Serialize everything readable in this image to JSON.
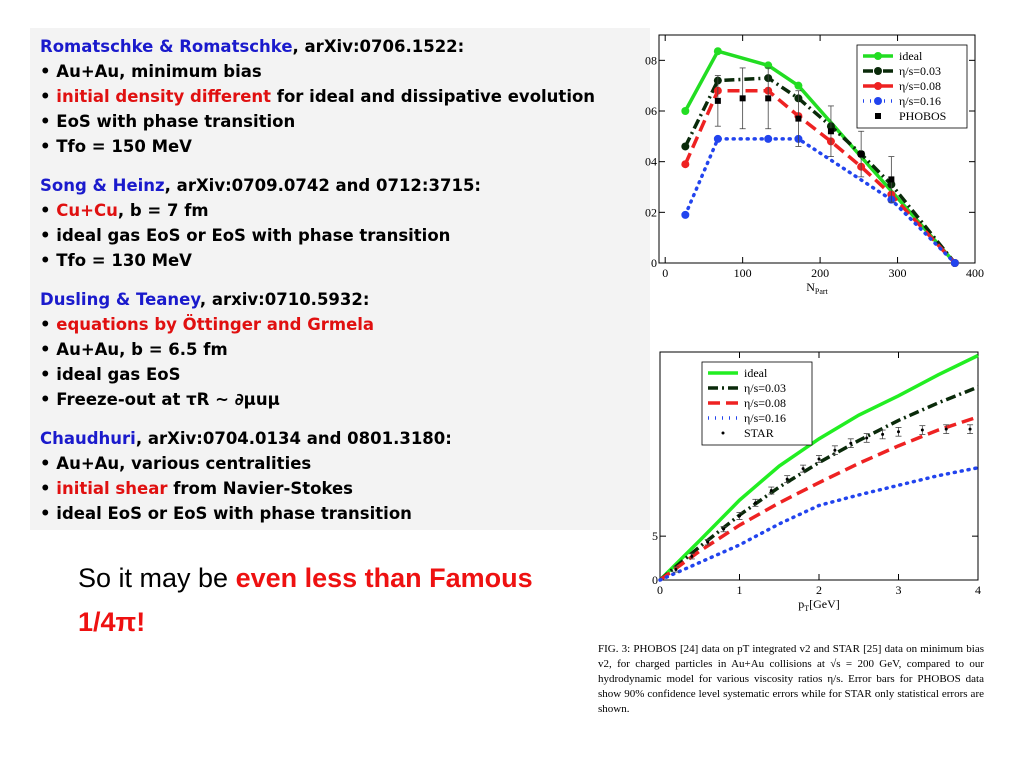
{
  "blocks": [
    {
      "heading": [
        {
          "text": "Romatschke & Romatschke",
          "color": "#1a1acc"
        },
        {
          "text": ", arXiv:0706.1522:",
          "color": "#000000"
        }
      ],
      "items": [
        [
          {
            "text": "Au+Au, minimum bias",
            "color": "#000000"
          }
        ],
        [
          {
            "text": "initial density different",
            "color": "#e01010"
          },
          {
            "text": " for ideal and dissipative evolution",
            "color": "#000000"
          }
        ],
        [
          {
            "text": "EoS with phase transition",
            "color": "#000000"
          }
        ],
        [
          {
            "text": "Tfo = 150 MeV",
            "color": "#000000"
          }
        ]
      ]
    },
    {
      "heading": [
        {
          "text": "Song & Heinz",
          "color": "#1a1acc"
        },
        {
          "text": ", arXiv:0709.0742 and 0712:3715:",
          "color": "#000000"
        }
      ],
      "items": [
        [
          {
            "text": "Cu+Cu",
            "color": "#e01010"
          },
          {
            "text": ", b = 7 fm",
            "color": "#000000"
          }
        ],
        [
          {
            "text": "ideal gas EoS or EoS with phase transition",
            "color": "#000000"
          }
        ],
        [
          {
            "text": "Tfo = 130 MeV",
            "color": "#000000"
          }
        ]
      ]
    },
    {
      "heading": [
        {
          "text": "Dusling & Teaney",
          "color": "#1a1acc"
        },
        {
          "text": ", arxiv:0710.5932:",
          "color": "#000000"
        }
      ],
      "items": [
        [
          {
            "text": "equations by Öttinger and Grmela",
            "color": "#e01010"
          }
        ],
        [
          {
            "text": "Au+Au, b = 6.5 fm",
            "color": "#000000"
          }
        ],
        [
          {
            "text": "ideal gas EoS",
            "color": "#000000"
          }
        ],
        [
          {
            "text": "Freeze-out at τR ~ ∂μuμ",
            "color": "#000000"
          }
        ]
      ]
    },
    {
      "heading": [
        {
          "text": "Chaudhuri",
          "color": "#1a1acc"
        },
        {
          "text": ", arXiv:0704.0134 and 0801.3180:",
          "color": "#000000"
        }
      ],
      "items": [
        [
          {
            "text": "Au+Au, various centralities",
            "color": "#000000"
          }
        ],
        [
          {
            "text": "initial shear",
            "color": "#e01010"
          },
          {
            "text": " from Navier-Stokes",
            "color": "#000000"
          }
        ],
        [
          {
            "text": "ideal EoS or EoS with phase transition",
            "color": "#000000"
          }
        ]
      ]
    }
  ],
  "message": {
    "plain": "So it may be ",
    "highlight": "even less than Famous 1/4π!"
  },
  "caption": "FIG. 3: PHOBOS [24] data on pT integrated v2 and STAR [25] data on minimum bias v2, for charged particles in Au+Au collisions at √s = 200 GeV, compared to our hydrodynamic model for various viscosity ratios η/s. Error bars for PHOBOS data show 90% confidence level systematic errors while for STAR only statistical errors are shown.",
  "chart_data": [
    {
      "type": "line",
      "xlabel": "N",
      "xlabel_sub": "Part",
      "xlim": [
        -8,
        400
      ],
      "xticks": [
        0,
        100,
        200,
        300,
        400
      ],
      "ylim": [
        0,
        0.09
      ],
      "yticks": [
        {
          "value": 0,
          "label": "0"
        },
        {
          "value": 0.02,
          "label": "02"
        },
        {
          "value": 0.04,
          "label": "04"
        },
        {
          "value": 0.06,
          "label": "06"
        },
        {
          "value": 0.08,
          "label": "08"
        }
      ],
      "legend": "upper right",
      "series": [
        {
          "name": "ideal",
          "color": "#22dd22",
          "style": "solid",
          "marker": "circle",
          "x": [
            26,
            68,
            133,
            172,
            374
          ],
          "values": [
            0.06,
            0.0836,
            0.078,
            0.07,
            0
          ]
        },
        {
          "name": "η/s=0.03",
          "color": "#0a2a0a",
          "style": "dashdot",
          "marker": "circle",
          "x": [
            26,
            68,
            133,
            172,
            214,
            253,
            292,
            374
          ],
          "values": [
            0.046,
            0.072,
            0.073,
            0.065,
            0.054,
            0.043,
            0.031,
            0
          ]
        },
        {
          "name": "η/s=0.08",
          "color": "#ee2222",
          "style": "dashed",
          "marker": "circle",
          "x": [
            26,
            68,
            133,
            172,
            214,
            253,
            292,
            374
          ],
          "values": [
            0.039,
            0.068,
            0.068,
            0.058,
            0.048,
            0.038,
            0.027,
            0
          ]
        },
        {
          "name": "η/s=0.16",
          "color": "#2244ee",
          "style": "dotted",
          "marker": "circle",
          "x": [
            26,
            68,
            133,
            172,
            292,
            374
          ],
          "values": [
            0.019,
            0.049,
            0.049,
            0.049,
            0.025,
            0
          ]
        },
        {
          "name": "PHOBOS",
          "color": "#000000",
          "style": "none",
          "marker": "square",
          "x": [
            68,
            100,
            133,
            172,
            214,
            253,
            292
          ],
          "values": [
            0.064,
            0.065,
            0.065,
            0.057,
            0.052,
            0.043,
            0.033
          ],
          "errors": [
            0.01,
            0.012,
            0.012,
            0.011,
            0.01,
            0.009,
            0.009
          ]
        }
      ]
    },
    {
      "type": "line",
      "xlabel": "p",
      "xlabel_sub": "T",
      "xlabel_rest": "[GeV]",
      "xlim": [
        0,
        4
      ],
      "xticks": [
        0,
        1,
        2,
        3,
        4
      ],
      "ylim": [
        0,
        0.26
      ],
      "yticks": [
        0,
        {
          "value": 0.05,
          "label": "5"
        }
      ],
      "legend": "upper left",
      "series": [
        {
          "name": "ideal",
          "color": "#22ee22",
          "style": "solid",
          "marker": "none",
          "x": [
            0,
            0.5,
            1,
            1.5,
            2,
            2.5,
            3,
            3.5,
            4
          ],
          "values": [
            0,
            0.045,
            0.091,
            0.13,
            0.161,
            0.188,
            0.21,
            0.234,
            0.256
          ]
        },
        {
          "name": "η/s=0.03",
          "color": "#0a2a0a",
          "style": "dashdot",
          "marker": "none",
          "x": [
            0,
            0.5,
            1,
            1.5,
            2,
            2.5,
            3,
            3.5,
            4
          ],
          "values": [
            0,
            0.038,
            0.074,
            0.106,
            0.134,
            0.159,
            0.182,
            0.202,
            0.22
          ]
        },
        {
          "name": "η/s=0.08",
          "color": "#ee2222",
          "style": "dashed",
          "marker": "none",
          "x": [
            0,
            0.5,
            1,
            1.5,
            2,
            2.5,
            3,
            3.5,
            4
          ],
          "values": [
            0,
            0.033,
            0.0625,
            0.088,
            0.111,
            0.133,
            0.153,
            0.171,
            0.186
          ]
        },
        {
          "name": "η/s=0.16",
          "color": "#2244ee",
          "style": "dotted",
          "marker": "none",
          "x": [
            0,
            0.5,
            1,
            1.5,
            2,
            2.5,
            3,
            3.5,
            4
          ],
          "values": [
            0,
            0.02,
            0.04,
            0.064,
            0.085,
            0.097,
            0.108,
            0.119,
            0.128
          ]
        },
        {
          "name": "STAR",
          "color": "#000000",
          "style": "none",
          "marker": "dot",
          "x": [
            0.2,
            0.4,
            0.6,
            0.8,
            1.0,
            1.2,
            1.4,
            1.6,
            1.8,
            2.0,
            2.2,
            2.4,
            2.6,
            2.8,
            3.0,
            3.3,
            3.6,
            3.9
          ],
          "values": [
            0.012,
            0.027,
            0.043,
            0.058,
            0.073,
            0.088,
            0.102,
            0.115,
            0.127,
            0.138,
            0.148,
            0.156,
            0.162,
            0.166,
            0.169,
            0.171,
            0.172,
            0.172
          ],
          "errors": [
            0.003,
            0.003,
            0.003,
            0.003,
            0.004,
            0.004,
            0.004,
            0.004,
            0.004,
            0.004,
            0.005,
            0.005,
            0.005,
            0.005,
            0.005,
            0.005,
            0.005,
            0.005
          ]
        }
      ]
    }
  ]
}
